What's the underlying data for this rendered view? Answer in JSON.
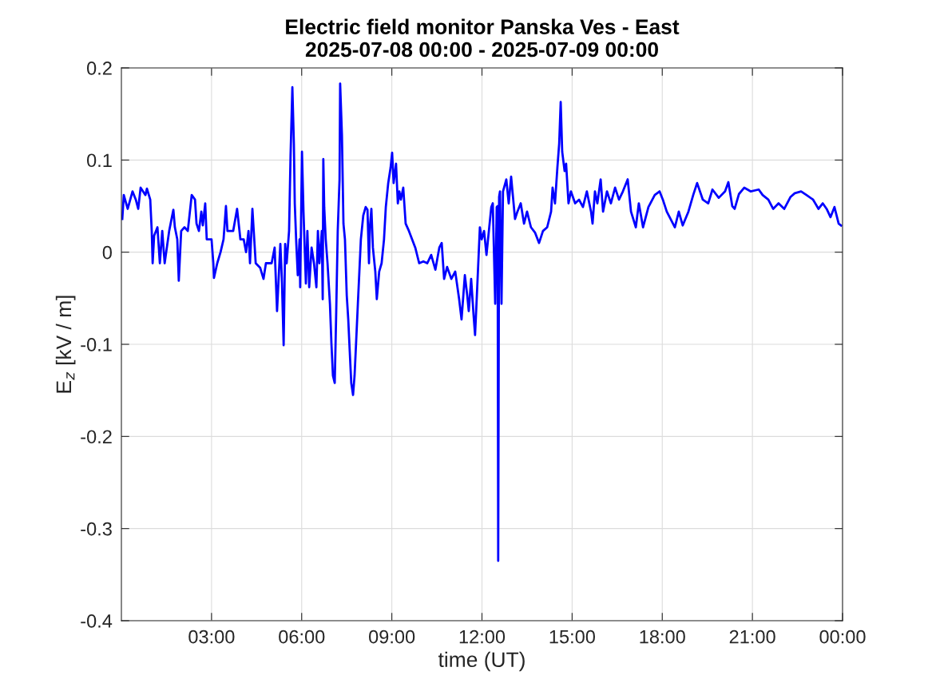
{
  "chart_data": {
    "type": "line",
    "title": "Electric field monitor Panska Ves - East\n2025-07-08 00:00 - 2025-07-09 00:00",
    "xlabel": "time (UT)",
    "ylabel": "E$_{z}$ [kV / m]",
    "xlim": [
      0,
      24
    ],
    "xticks": [
      {
        "value": 3,
        "label": "03:00"
      },
      {
        "value": 6,
        "label": "06:00"
      },
      {
        "value": 9,
        "label": "09:00"
      },
      {
        "value": 12,
        "label": "12:00"
      },
      {
        "value": 15,
        "label": "15:00"
      },
      {
        "value": 18,
        "label": "18:00"
      },
      {
        "value": 21,
        "label": "21:00"
      },
      {
        "value": 24,
        "label": "00:00"
      }
    ],
    "ylim": [
      -0.4,
      0.2
    ],
    "yticks": [
      -0.4,
      -0.3,
      -0.2,
      -0.1,
      0,
      0.1,
      0.2
    ],
    "grid": true,
    "line_style": "solid",
    "series": [
      {
        "color": "#0000ff",
        "x": [
          0.03,
          0.08,
          0.21,
          0.37,
          0.48,
          0.56,
          0.64,
          0.8,
          0.85,
          0.96,
          1.01,
          1.04,
          1.09,
          1.2,
          1.28,
          1.36,
          1.44,
          1.59,
          1.73,
          1.78,
          1.86,
          1.91,
          1.99,
          2.1,
          2.21,
          2.34,
          2.45,
          2.5,
          2.58,
          2.66,
          2.71,
          2.79,
          2.84,
          3.0,
          3.06,
          3.08,
          3.19,
          3.3,
          3.4,
          3.48,
          3.53,
          3.72,
          3.85,
          3.96,
          4.07,
          4.15,
          4.23,
          4.28,
          4.36,
          4.47,
          4.62,
          4.73,
          4.81,
          5.0,
          5.1,
          5.18,
          5.29,
          5.34,
          5.4,
          5.45,
          5.5,
          5.58,
          5.63,
          5.69,
          5.74,
          5.77,
          5.82,
          5.87,
          5.93,
          5.95,
          6.01,
          6.06,
          6.14,
          6.19,
          6.25,
          6.33,
          6.41,
          6.49,
          6.54,
          6.59,
          6.67,
          6.7,
          6.72,
          6.75,
          6.8,
          6.86,
          6.94,
          6.99,
          7.04,
          7.1,
          7.15,
          7.2,
          7.26,
          7.28,
          7.34,
          7.39,
          7.44,
          7.5,
          7.55,
          7.6,
          7.65,
          7.71,
          7.76,
          7.81,
          7.87,
          7.92,
          7.97,
          8.05,
          8.13,
          8.19,
          8.24,
          8.27,
          8.32,
          8.37,
          8.45,
          8.5,
          8.58,
          8.66,
          8.74,
          8.8,
          8.88,
          8.96,
          9.01,
          9.06,
          9.14,
          9.2,
          9.25,
          9.3,
          9.38,
          9.46,
          9.57,
          9.78,
          9.91,
          10.05,
          10.18,
          10.31,
          10.45,
          10.58,
          10.66,
          10.74,
          10.84,
          10.98,
          11.11,
          11.24,
          11.32,
          11.43,
          11.51,
          11.56,
          11.64,
          11.72,
          11.77,
          11.83,
          11.93,
          11.99,
          12.07,
          12.15,
          12.23,
          12.31,
          12.36,
          12.44,
          12.49,
          12.52,
          12.54,
          12.57,
          12.6,
          12.65,
          12.7,
          12.81,
          12.89,
          12.97,
          13.1,
          13.18,
          13.29,
          13.4,
          13.5,
          13.63,
          13.77,
          13.9,
          14.03,
          14.17,
          14.3,
          14.35,
          14.43,
          14.51,
          14.57,
          14.62,
          14.67,
          14.75,
          14.8,
          14.88,
          14.96,
          15.1,
          15.23,
          15.36,
          15.49,
          15.63,
          15.68,
          15.76,
          15.84,
          15.95,
          16.03,
          16.16,
          16.29,
          16.43,
          16.56,
          16.69,
          16.85,
          16.96,
          17.12,
          17.22,
          17.36,
          17.54,
          17.75,
          17.91,
          18.02,
          18.15,
          18.42,
          18.55,
          18.68,
          18.87,
          19.03,
          19.16,
          19.35,
          19.53,
          19.67,
          19.88,
          20.09,
          20.2,
          20.33,
          20.41,
          20.55,
          20.73,
          20.94,
          21.21,
          21.34,
          21.53,
          21.69,
          21.87,
          22.06,
          22.27,
          22.41,
          22.62,
          22.8,
          23.02,
          23.2,
          23.34,
          23.47,
          23.6,
          23.73,
          23.87,
          23.95
        ],
        "values": [
          0.036,
          0.062,
          0.047,
          0.066,
          0.057,
          0.047,
          0.07,
          0.062,
          0.069,
          0.057,
          0.023,
          -0.012,
          0.018,
          0.027,
          -0.012,
          0.023,
          -0.012,
          0.023,
          0.046,
          0.027,
          0.014,
          -0.031,
          0.023,
          0.027,
          0.023,
          0.062,
          0.057,
          0.031,
          0.023,
          0.044,
          0.029,
          0.053,
          0.014,
          0.014,
          -0.012,
          -0.028,
          -0.012,
          0,
          0.014,
          0.05,
          0.023,
          0.023,
          0.047,
          0.014,
          0.014,
          0,
          0.023,
          -0.012,
          0.047,
          -0.012,
          -0.017,
          -0.029,
          -0.012,
          -0.012,
          0.005,
          -0.064,
          0.009,
          -0.028,
          -0.101,
          0.009,
          -0.012,
          0.023,
          0.105,
          0.179,
          0.118,
          0.053,
          0.01,
          -0.025,
          0.014,
          -0.038,
          0.109,
          0.044,
          -0.034,
          0.023,
          -0.038,
          0.005,
          -0.012,
          -0.038,
          0.023,
          -0.012,
          0.023,
          -0.051,
          0.101,
          0.049,
          0.014,
          -0.012,
          -0.056,
          -0.099,
          -0.134,
          -0.142,
          -0.064,
          0.023,
          0.079,
          0.183,
          0.127,
          0.031,
          0.014,
          -0.047,
          -0.073,
          -0.108,
          -0.142,
          -0.155,
          -0.134,
          -0.099,
          -0.056,
          -0.021,
          0.014,
          0.04,
          0.049,
          0.046,
          -0.012,
          0.027,
          0.047,
          0.005,
          -0.021,
          -0.051,
          -0.021,
          -0.012,
          0.014,
          0.049,
          0.075,
          0.092,
          0.108,
          0.075,
          0.096,
          0.053,
          0.066,
          0.057,
          0.07,
          0.031,
          0.023,
          0.005,
          -0.012,
          -0.01,
          -0.012,
          -0.003,
          -0.019,
          0.005,
          0.01,
          -0.029,
          -0.016,
          -0.029,
          -0.021,
          -0.051,
          -0.073,
          -0.025,
          -0.047,
          -0.064,
          -0.029,
          -0.068,
          -0.09,
          -0.047,
          0.027,
          0.014,
          0.023,
          -0.003,
          0.023,
          0.049,
          0.053,
          -0.056,
          0.049,
          0.05,
          -0.335,
          0.06,
          0.066,
          -0.056,
          0.066,
          0.079,
          0.053,
          0.082,
          0.036,
          0.044,
          0.053,
          0.031,
          0.044,
          0.027,
          0.021,
          0.01,
          0.023,
          0.027,
          0.044,
          0.07,
          0.053,
          0.092,
          0.118,
          0.163,
          0.109,
          0.088,
          0.096,
          0.053,
          0.066,
          0.053,
          0.057,
          0.049,
          0.066,
          0.044,
          0.031,
          0.066,
          0.053,
          0.079,
          0.044,
          0.066,
          0.053,
          0.07,
          0.057,
          0.066,
          0.079,
          0.044,
          0.027,
          0.053,
          0.027,
          0.049,
          0.062,
          0.066,
          0.057,
          0.044,
          0.027,
          0.044,
          0.029,
          0.044,
          0.062,
          0.075,
          0.057,
          0.053,
          0.068,
          0.059,
          0.066,
          0.076,
          0.05,
          0.047,
          0.063,
          0.07,
          0.066,
          0.068,
          0.062,
          0.057,
          0.047,
          0.053,
          0.047,
          0.06,
          0.064,
          0.066,
          0.062,
          0.057,
          0.047,
          0.053,
          0.047,
          0.038,
          0.049,
          0.031,
          0.029
        ]
      }
    ]
  }
}
